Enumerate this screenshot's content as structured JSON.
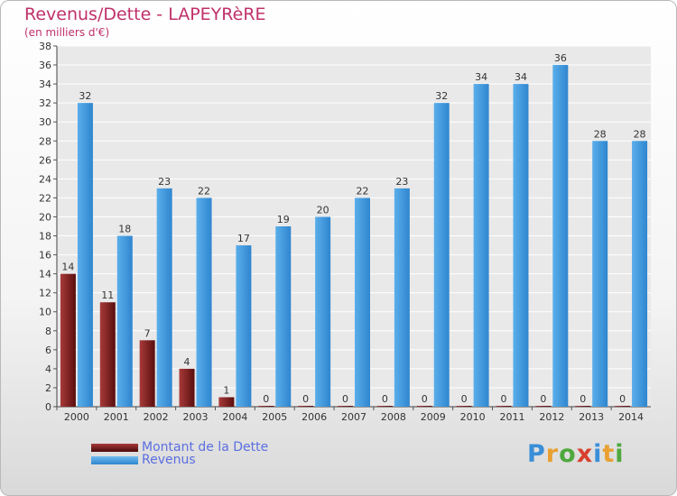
{
  "title": "Revenus/Dette - LAPEYRèRE",
  "subtitle": "(en milliers d'€)",
  "logo": {
    "letters": [
      "P",
      "r",
      "o",
      "x",
      "i",
      "t",
      "i"
    ],
    "colors": [
      "#3a8fd8",
      "#e8a030",
      "#4fa83d",
      "#d8402e",
      "#3a8fd8",
      "#e8a030",
      "#4fa83d"
    ]
  },
  "chart_data": {
    "type": "bar",
    "categories": [
      "2000",
      "2001",
      "2002",
      "2003",
      "2004",
      "2005",
      "2006",
      "2007",
      "2008",
      "2009",
      "2010",
      "2011",
      "2012",
      "2013",
      "2014"
    ],
    "series": [
      {
        "name": "Montant de la Dette",
        "color": "#7a1a1a",
        "values": [
          14,
          11,
          7,
          4,
          1,
          0,
          0,
          0,
          0,
          0,
          0,
          0,
          0,
          0,
          0
        ]
      },
      {
        "name": "Revenus",
        "color": "#4a9fe0",
        "values": [
          32,
          18,
          23,
          22,
          17,
          19,
          20,
          22,
          23,
          32,
          34,
          34,
          36,
          28,
          28
        ]
      }
    ],
    "ylim": [
      0,
      38
    ],
    "yticks": [
      0,
      2,
      4,
      6,
      8,
      10,
      12,
      14,
      16,
      18,
      20,
      22,
      24,
      26,
      28,
      30,
      32,
      34,
      36,
      38
    ],
    "grid": true,
    "legend": "bottom-left"
  }
}
